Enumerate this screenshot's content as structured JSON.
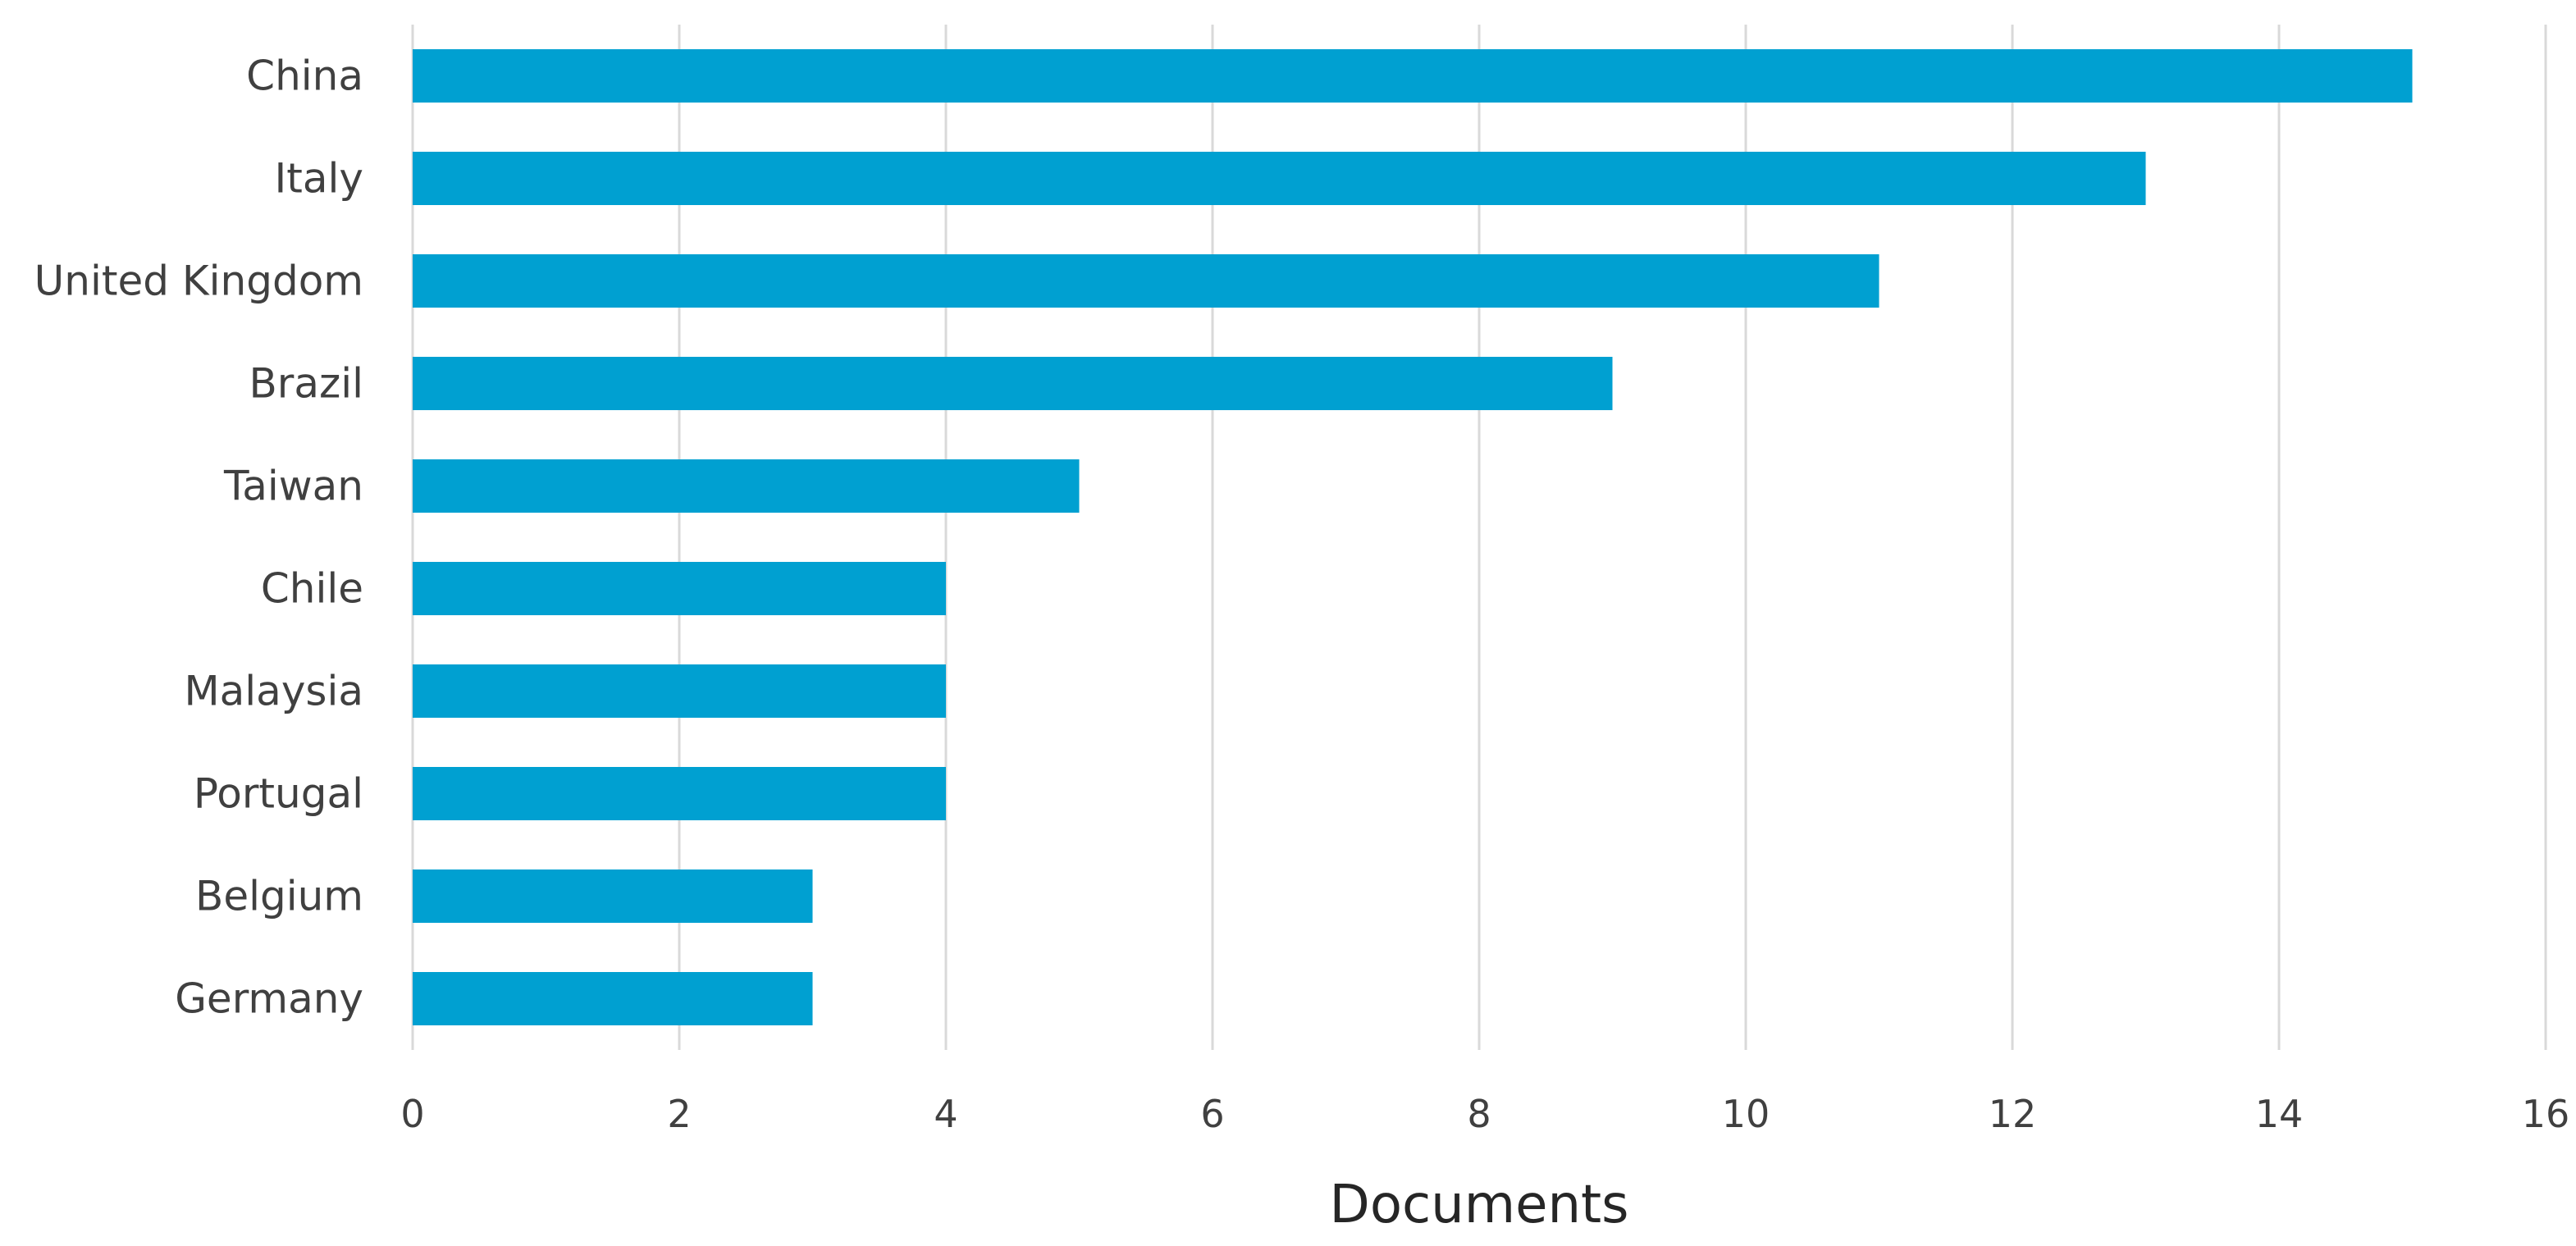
{
  "chart_data": {
    "type": "bar",
    "orientation": "horizontal",
    "categories": [
      "China",
      "Italy",
      "United Kingdom",
      "Brazil",
      "Taiwan",
      "Chile",
      "Malaysia",
      "Portugal",
      "Belgium",
      "Germany"
    ],
    "values": [
      15,
      13,
      11,
      9,
      5,
      4,
      4,
      4,
      3,
      3
    ],
    "xlabel": "Documents",
    "ylabel": "",
    "xlim": [
      0,
      16
    ],
    "xticks": [
      "0",
      "2",
      "4",
      "6",
      "8",
      "10",
      "12",
      "14",
      "16"
    ],
    "grid": "vertical",
    "legend": "none",
    "bar_color": "#00a0d1"
  }
}
